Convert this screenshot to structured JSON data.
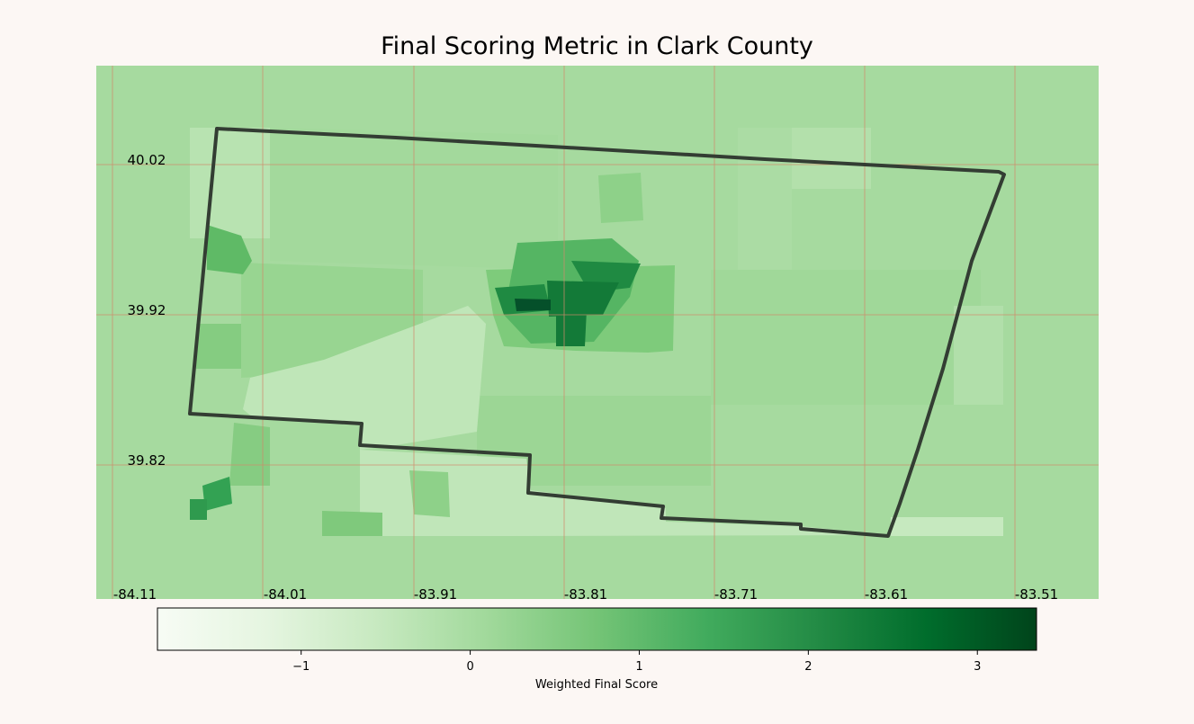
{
  "title": "Final Scoring Metric in Clark County",
  "map": {
    "lon_ticks": [
      "-84.11",
      "-84.01",
      "-83.91",
      "-83.81",
      "-83.71",
      "-83.61",
      "-83.51"
    ],
    "lat_ticks": [
      "40.02",
      "39.92",
      "39.82"
    ],
    "grid_color": "#d08a6a",
    "boundary_color": "#333d33",
    "base_color": "#a6da9f"
  },
  "colorbar": {
    "label": "Weighted Final Score",
    "min": -1.85,
    "max": 3.35,
    "ticks": [
      "−1",
      "0",
      "1",
      "2",
      "3"
    ],
    "tick_values": [
      -1,
      0,
      1,
      2,
      3
    ],
    "colormap": "Greens",
    "colors": [
      "#f7fcf5",
      "#e5f5e0",
      "#c7e9c0",
      "#a1d99b",
      "#74c476",
      "#41ab5d",
      "#238b45",
      "#006d2c",
      "#00441b"
    ]
  }
}
